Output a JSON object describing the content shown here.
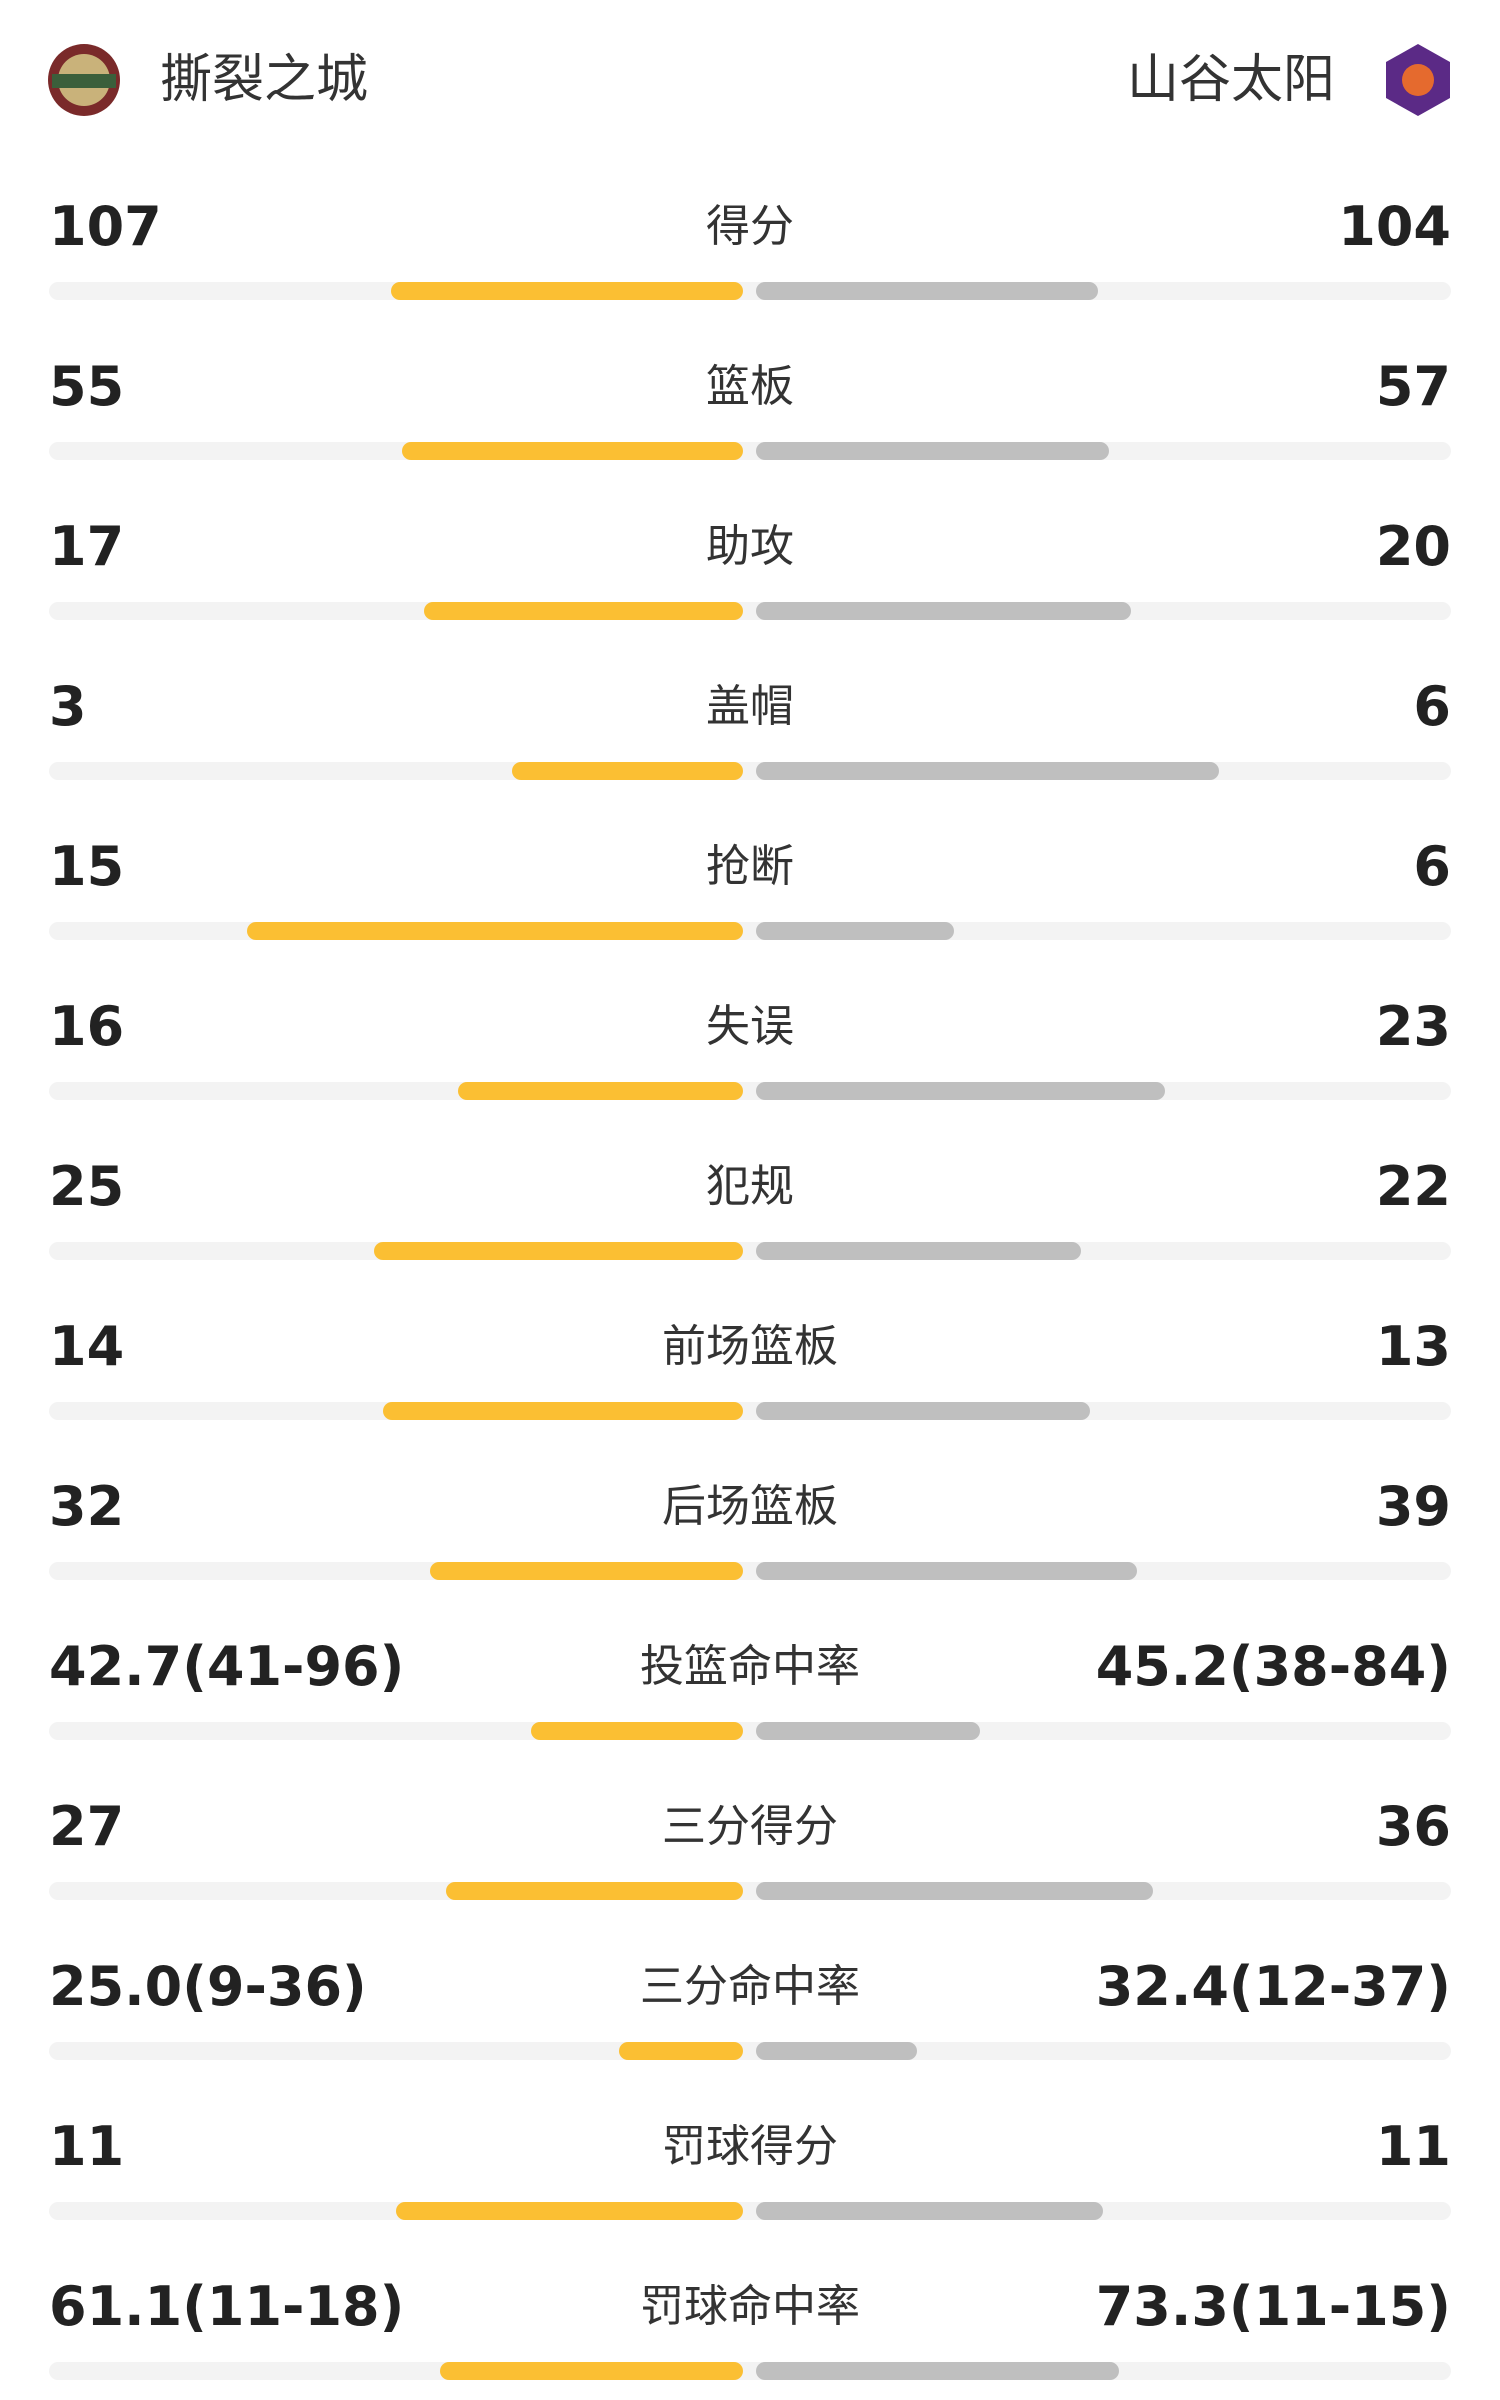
{
  "header": {
    "home_team": "撕裂之城",
    "away_team": "山谷太阳"
  },
  "stats": [
    {
      "name": "得分",
      "home": 107,
      "away": 104
    },
    {
      "name": "篮板",
      "home": 55,
      "away": 57
    },
    {
      "name": "助攻",
      "home": 17,
      "away": 20
    },
    {
      "name": "盖帽",
      "home": 3,
      "away": 6
    },
    {
      "name": "抢断",
      "home": 15,
      "away": 6
    },
    {
      "name": "失误",
      "home": 16,
      "away": 23
    },
    {
      "name": "犯规",
      "home": 25,
      "away": 22
    },
    {
      "name": "前场篮板",
      "home": 14,
      "away": 13
    },
    {
      "name": "后场篮板",
      "home": 32,
      "away": 39
    },
    {
      "name": "投篮命中率",
      "home": {
        "value": 42.7,
        "label": "42.7(41-96)"
      },
      "away": {
        "value": 45.2,
        "label": "45.2(38-84)"
      }
    },
    {
      "name": "三分得分",
      "home": 27,
      "away": 36
    },
    {
      "name": "三分命中率",
      "home": {
        "value": 25.0,
        "label": "25.0(9-36)"
      },
      "away": {
        "value": 32.4,
        "label": "32.4(12-37)"
      }
    },
    {
      "name": "罚球得分",
      "home": 11,
      "away": 11
    },
    {
      "name": "罚球命中率",
      "home": {
        "value": 61.1,
        "label": "61.1(11-18)"
      },
      "away": {
        "value": 73.3,
        "label": "73.3(11-15)"
      }
    }
  ]
}
